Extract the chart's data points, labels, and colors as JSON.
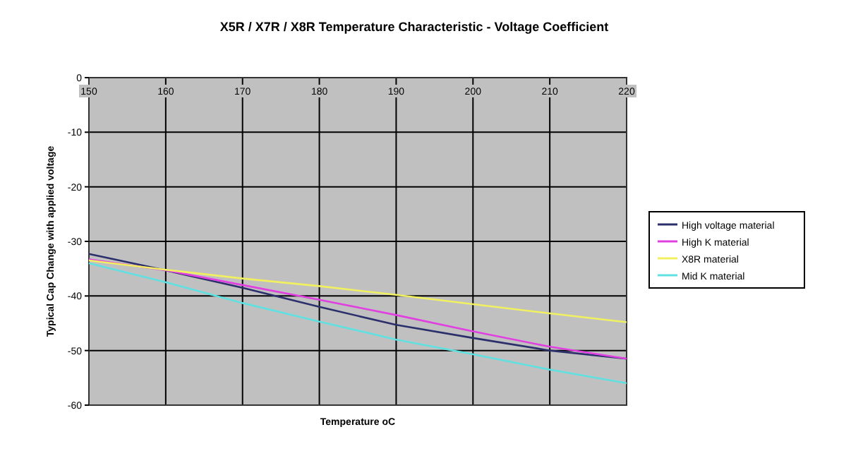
{
  "chart_data": {
    "type": "line",
    "title": "X5R / X7R / X8R Temperature Characteristic - Voltage Coefficient",
    "xlabel": "Temperature oC",
    "ylabel": "Typical Cap Change with applied voltage",
    "x": [
      150,
      160,
      170,
      180,
      190,
      200,
      210,
      220
    ],
    "series": [
      {
        "name": "High voltage material",
        "color": "#2b2f6b",
        "values": [
          -32.3,
          -35.3,
          -38.5,
          -42,
          -45.3,
          -47.7,
          -50,
          -51.5
        ]
      },
      {
        "name": "High K material",
        "color": "#e040e0",
        "values": [
          -33.3,
          -35.3,
          -38,
          -40.7,
          -43.5,
          -46.5,
          -49.3,
          -51.5
        ]
      },
      {
        "name": "X8R material",
        "color": "#f0f060",
        "values": [
          -33.5,
          -35.2,
          -36.8,
          -38.2,
          -39.8,
          -41.5,
          -43.2,
          -44.8
        ]
      },
      {
        "name": "Mid K material",
        "color": "#60e0e0",
        "values": [
          -34,
          -37.5,
          -41.3,
          -44.7,
          -48,
          -50.7,
          -53.5,
          -56
        ]
      }
    ],
    "xlim": [
      150,
      220
    ],
    "xticks": [
      150,
      160,
      170,
      180,
      190,
      200,
      210,
      220
    ],
    "ylim": [
      -60,
      0
    ],
    "yticks": [
      0,
      -10,
      -20,
      -30,
      -40,
      -50,
      -60
    ],
    "grid": true,
    "legend": "right",
    "marker": "none",
    "line_style": "solid"
  }
}
